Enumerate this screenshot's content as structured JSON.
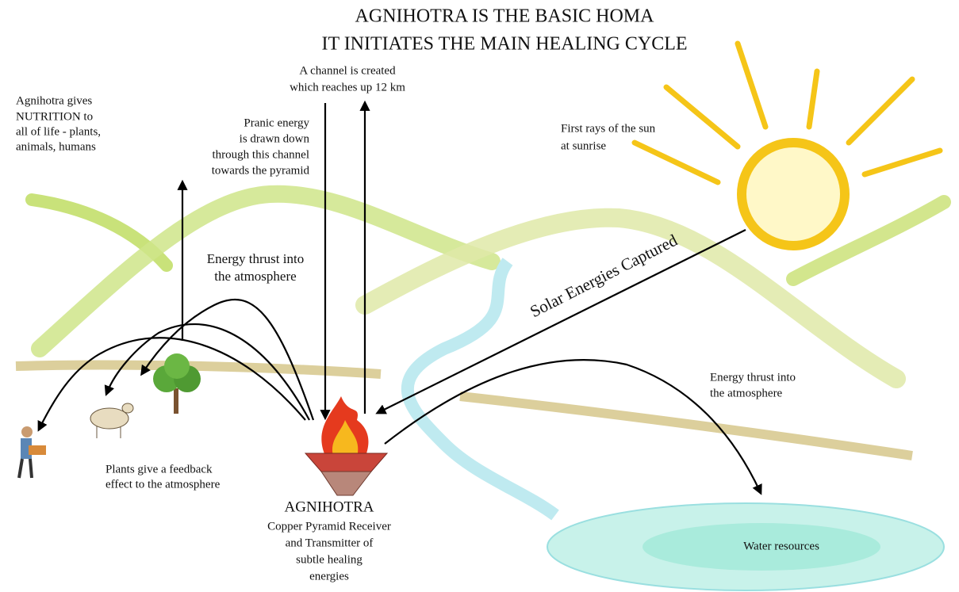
{
  "title": [
    "AGNIHOTRA IS THE BASIC HOMA",
    "IT INITIATES THE MAIN HEALING CYCLE"
  ],
  "labels": {
    "channel": [
      "A channel is created",
      "which reaches up 12 km"
    ],
    "nutrition": [
      "Agnihotra gives",
      "NUTRITION to",
      "all of life - plants,",
      "animals, humans"
    ],
    "pranic": [
      "Pranic energy",
      "is drawn down",
      "through this channel",
      "towards the pyramid"
    ],
    "sun": [
      "First rays of the sun",
      "at sunrise"
    ],
    "energy_left": [
      "Energy thrust into",
      "the atmosphere"
    ],
    "solar": "Solar Energies Captured",
    "energy_right": [
      "Energy thrust into",
      "the atmosphere"
    ],
    "plants": [
      "Plants give a feedback",
      "effect to the atmosphere"
    ],
    "agnihotra": [
      "AGNIHOTRA",
      "Copper Pyramid Receiver",
      "and Transmitter of",
      "subtle healing",
      "energies"
    ],
    "water": "Water resources"
  }
}
